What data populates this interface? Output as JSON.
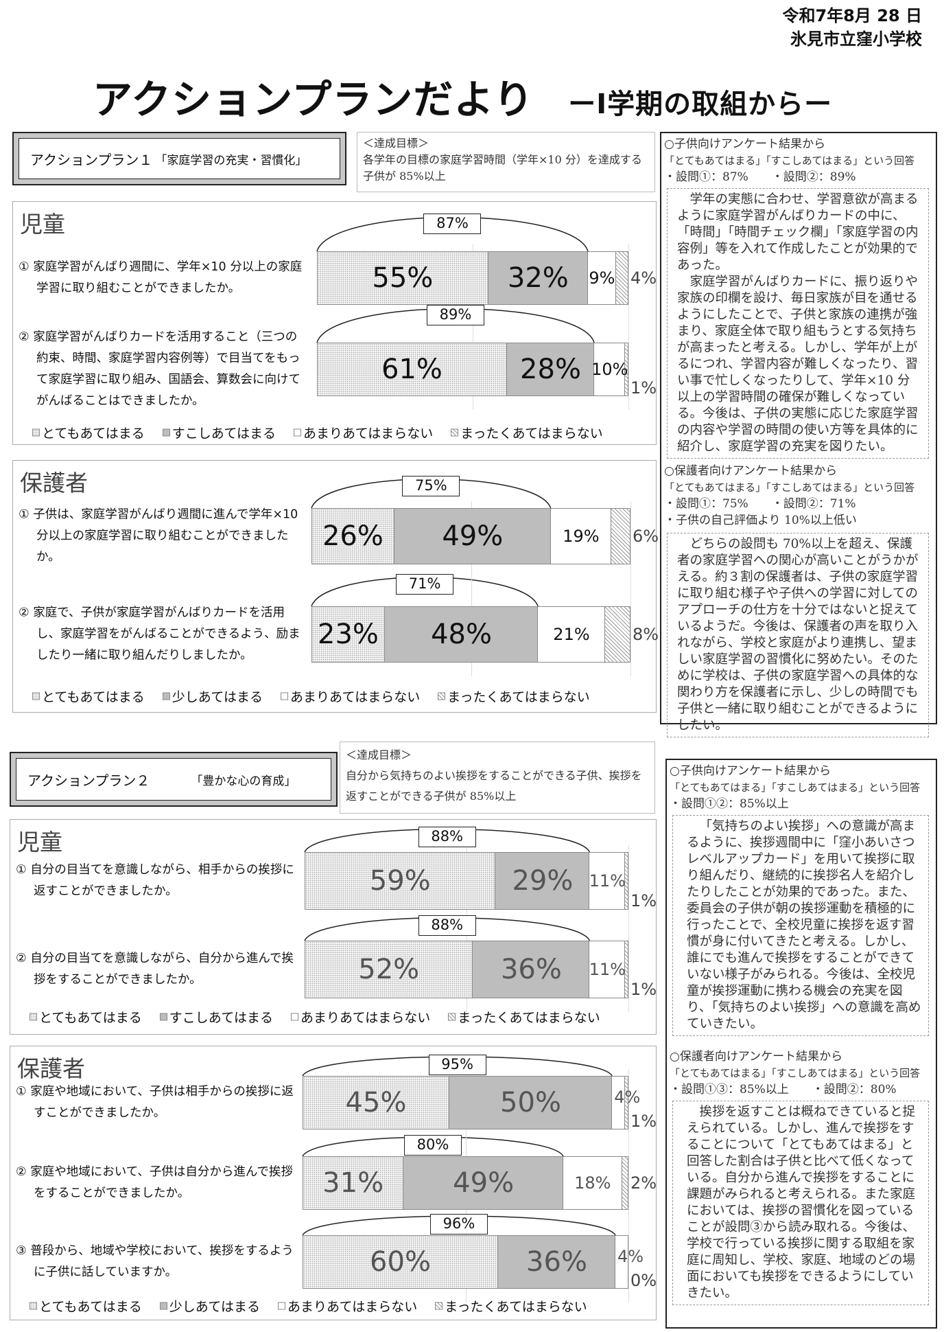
{
  "header": {
    "date": "令和7年8月 28 日",
    "school": "氷見市立窪小学校",
    "title": "アクションプランだより",
    "subtitle": "ーⅠ学期の取組からー"
  },
  "plan1": {
    "name": "アクションプラン１",
    "theme": "「家庭学習の充実・習慣化」",
    "goal_label": "＜達成目標＞",
    "goal_text": "各学年の目標の家庭学習時間（学年×10 分）を達成する子供が 85%以上",
    "children_result": {
      "heading": "○子供向けアンケート結果から",
      "criteria": "「とてもあてはまる」「すこしあてはまる」という回答",
      "stats": [
        "・設問①：87%",
        "・設問②：89%"
      ],
      "paragraphs": [
        "学年の実態に合わせ、学習意欲が高まるように家庭学習がんばりカードの中に、「時間」「時間チェック欄」「家庭学習の内容例」等を入れて作成したことが効果的であった。",
        "家庭学習がんばりカードに、振り返りや家族の印欄を設け、毎日家族が目を通せるようにしたことで、子供と家族の連携が強まり、家庭全体で取り組もうとする気持ちが高まったと考える。しかし、学年が上がるにつれ、学習内容が難しくなったり、習い事で忙しくなったりして、学年×10 分以上の学習時間の確保が難しくなっている。今後は、子供の実態に応じた家庭学習の内容や学習の時間の使い方等を具体的に紹介し、家庭学習の充実を図りたい。"
      ]
    },
    "parent_result": {
      "heading": "○保護者向けアンケート結果から",
      "criteria": "「とてもあてはまる」「すこしあてはまる」という回答",
      "stats": [
        "・設問①：75%",
        "・設問②：71%"
      ],
      "note": "・子供の自己評価より 10%以上低い",
      "paragraphs": [
        "どちらの設問も 70%以上を超え、保護者の家庭学習への関心が高いことがうかがえる。約３割の保護者は、子供の家庭学習に取り組む様子や子供への学習に対してのアプローチの仕方を十分ではないと捉えているようだ。今後は、保護者の声を取り入れながら、学校と家庭がより連携し、望ましい家庭学習の習慣化に努めたい。そのために学校は、子供の家庭学習への具体的な関わり方を保護者に示し、少しの時間でも子供と一緒に取り組むことができるようにしたい。"
      ]
    }
  },
  "plan2": {
    "name": "アクションプラン２",
    "theme": "「豊かな心の育成」",
    "goal_label": "＜達成目標＞",
    "goal_text": "自分から気持ちのよい挨拶をすることができる子供、挨拶を返すことができる子供が 85%以上",
    "children_result": {
      "heading": "○子供向けアンケート結果から",
      "criteria": "「とてもあてはまる」「すこしあてはまる」という回答",
      "stats": [
        "・設問①②：85%以上"
      ],
      "paragraphs": [
        "「気持ちのよい挨拶」への意識が高まるように、挨拶週間中に「窪小あいさつレベルアップカード」を用いて挨拶に取り組んだり、継続的に挨拶名人を紹介したりしたことが効果的であった。また、委員会の子供が朝の挨拶運動を積極的に行ったことで、全校児童に挨拶を返す習慣が身に付いてきたと考える。しかし、誰にでも進んで挨拶をすることができていない様子がみられる。今後は、全校児童が挨拶運動に携わる機会の充実を図り、「気持ちのよい挨拶」への意識を高めていきたい。"
      ]
    },
    "parent_result": {
      "heading": "○保護者向けアンケート結果から",
      "criteria": "「とてもあてはまる」「すこしあてはまる」という回答",
      "stats": [
        "・設問①③：85%以上",
        "・設問②：80%"
      ],
      "paragraphs": [
        "挨拶を返すことは概ねできていると捉えられている。しかし、進んで挨拶をすることについて「とてもあてはまる」と回答した割合は子供と比べて低くなっている。自分から進んで挨拶をすることに課題がみられると考えられる。また家庭においては、挨拶の習慣化を図っていることが設問③から読み取れる。今後は、学校で行っている挨拶に関する取組を家庭に周知し、学校、家庭、地域のどの場面においても挨拶をできるようにしていきたい。"
      ]
    }
  },
  "colors": {
    "strong_agree": "#f2f2f2",
    "agree": "#bdbdbd",
    "disagree": "#ffffff",
    "strong_disagree": "#999999"
  },
  "chart_data": [
    {
      "type": "bar",
      "stacked": true,
      "orientation": "horizontal",
      "title": "児童",
      "legend": [
        "とてもあてはまる",
        "すこしあてはまる",
        "あまりあてはまらない",
        "まったくあてはまらない"
      ],
      "rows": [
        {
          "question": "① 家庭学習がんばり週間に、学年×10 分以上の家庭学習に取り組むことができましたか。",
          "values": [
            55,
            32,
            9,
            4
          ],
          "total": "87%"
        },
        {
          "question": "② 家庭学習がんばりカードを活用すること（三つの約束、時間、家庭学習内容例等）で目当てをもって家庭学習に取り組み、国語会、算数会に向けてがんばることはできましたか。",
          "values": [
            61,
            28,
            10,
            1
          ],
          "total": "89%"
        }
      ],
      "xlim": [
        0,
        100
      ]
    },
    {
      "type": "bar",
      "stacked": true,
      "orientation": "horizontal",
      "title": "保護者",
      "legend": [
        "とてもあてはまる",
        "少しあてはまる",
        "あまりあてはまらない",
        "まったくあてはまらない"
      ],
      "rows": [
        {
          "question": "① 子供は、家庭学習がんばり週間に進んで学年×10 分以上の家庭学習に取り組むことができましたか。",
          "values": [
            26,
            49,
            19,
            6
          ],
          "total": "75%"
        },
        {
          "question": "② 家庭で、子供が家庭学習がんばりカードを活用し、家庭学習をがんばることができるよう、励ましたり一緒に取り組んだりしましたか。",
          "values": [
            23,
            48,
            21,
            8
          ],
          "total": "71%"
        }
      ],
      "xlim": [
        0,
        100
      ]
    },
    {
      "type": "bar",
      "stacked": true,
      "orientation": "horizontal",
      "title": "児童",
      "legend": [
        "とてもあてはまる",
        "すこしあてはまる",
        "あまりあてはまらない",
        "まったくあてはまらない"
      ],
      "rows": [
        {
          "question": "① 自分の目当てを意識しながら、相手からの挨拶に返すことができましたか。",
          "values": [
            59,
            29,
            11,
            1
          ],
          "total": "88%"
        },
        {
          "question": "② 自分の目当てを意識しながら、自分から進んで挨拶をすることができましたか。",
          "values": [
            52,
            36,
            11,
            1
          ],
          "total": "88%"
        }
      ],
      "xlim": [
        0,
        100
      ]
    },
    {
      "type": "bar",
      "stacked": true,
      "orientation": "horizontal",
      "title": "保護者",
      "legend": [
        "とてもあてはまる",
        "少しあてはまる",
        "あまりあてはまらない",
        "まったくあてはまらない"
      ],
      "rows": [
        {
          "question": "① 家庭や地域において、子供は相手からの挨拶に返すことができましたか。",
          "values": [
            45,
            50,
            4,
            1
          ],
          "total": "95%"
        },
        {
          "question": "② 家庭や地域において、子供は自分から進んで挨拶をすることができましたか。",
          "values": [
            31,
            49,
            18,
            2
          ],
          "total": "80%"
        },
        {
          "question": "③ 普段から、地域や学校において、挨拶をするように子供に話していますか。",
          "values": [
            60,
            36,
            4,
            0
          ],
          "total": "96%"
        }
      ],
      "xlim": [
        0,
        100
      ]
    }
  ]
}
